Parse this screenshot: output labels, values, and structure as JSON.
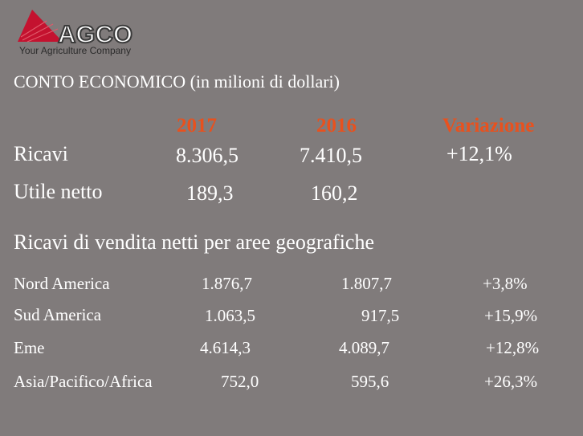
{
  "logo": {
    "word": "AGCO",
    "tagline": "Your Agriculture Company"
  },
  "title": "CONTO ECONOMICO  (in milioni di dollari)",
  "headers": {
    "y2017": "2017",
    "y2016": "2016",
    "variation": "Variazione"
  },
  "summary": [
    {
      "label": "Ricavi",
      "v2017": "8.306,5",
      "v2016": "7.410,5",
      "variation": "+12,1%"
    },
    {
      "label": "Utile netto",
      "v2017": "189,3",
      "v2016": "160,2",
      "variation": ""
    }
  ],
  "section_title": "Ricavi di vendita netti  per aree  geografiche",
  "regions": [
    {
      "label": "Nord America",
      "v2017": "1.876,7",
      "v2016": "1.807,7",
      "variation": "+3,8%"
    },
    {
      "label": "Sud America",
      "v2017": "1.063,5",
      "v2016": "917,5",
      "variation": "+15,9%"
    },
    {
      "label": "Eme",
      "v2017": "4.614,3",
      "v2016": "4.089,7",
      "variation": "+12,8%"
    },
    {
      "label": "Asia/Pacifico/Africa",
      "v2017": "752,0",
      "v2016": "595,6",
      "variation": "+26,3%"
    }
  ],
  "colors": {
    "background": "#807b7b",
    "accent": "#e8511e",
    "logo_red": "#c4122f"
  }
}
